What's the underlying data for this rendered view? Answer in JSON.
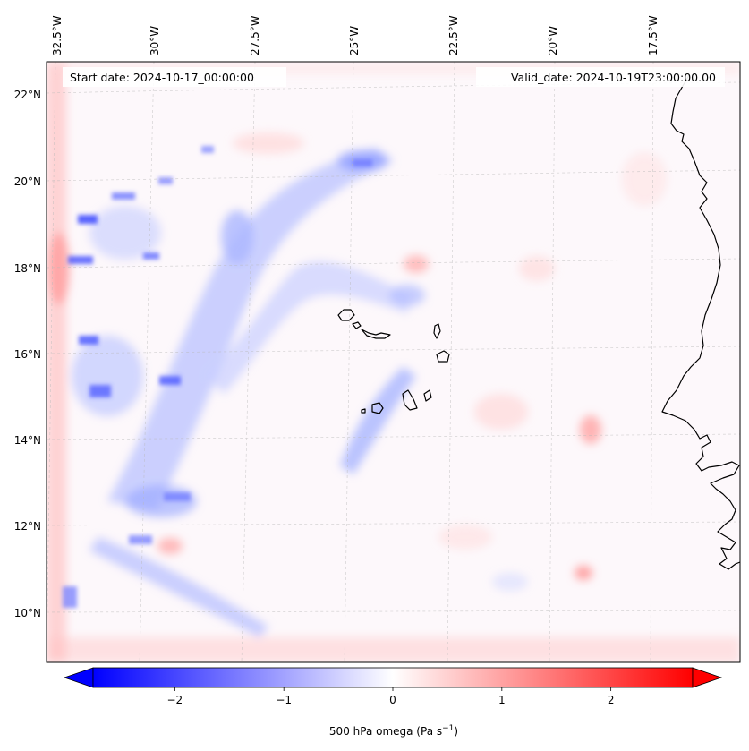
{
  "map": {
    "start_date_text": "Start date: 2024-10-17_00:00:00",
    "valid_date_text": "Valid_date: 2024-10-19T23:00:00.00",
    "longitude_labels": [
      "32.5°W",
      "30°W",
      "27.5°W",
      "25°W",
      "22.5°W",
      "20°W",
      "17.5°W"
    ],
    "latitude_labels": [
      "22°N",
      "20°N",
      "18°N",
      "16°N",
      "14°N",
      "12°N",
      "10°N"
    ],
    "field": "500 hPa omega",
    "colormap": "bwr",
    "colors": {
      "negative": "#0000ff",
      "zero": "#ffffff",
      "positive": "#ff0000"
    },
    "gridlines": true
  },
  "colorbar": {
    "label_main": "500 hPa omega (Pa s",
    "label_exp": "−1",
    "label_close": ")",
    "range": [
      -2.75,
      2.75
    ],
    "ticks": [
      -2,
      -1,
      0,
      1,
      2
    ],
    "tick_labels": [
      "−2",
      "−1",
      "0",
      "1",
      "2"
    ],
    "extend": "both"
  }
}
